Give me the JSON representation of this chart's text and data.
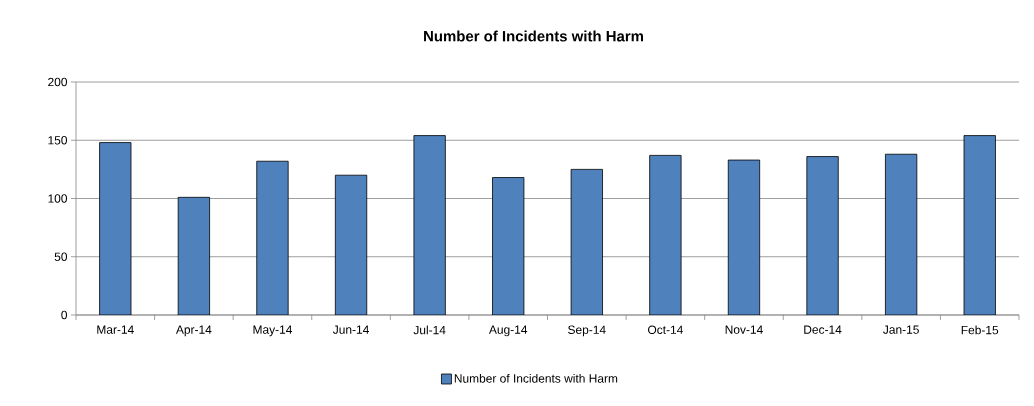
{
  "chart_data": {
    "type": "bar",
    "title": "Number of Incidents with Harm",
    "categories": [
      "Mar-14",
      "Apr-14",
      "May-14",
      "Jun-14",
      "Jul-14",
      "Aug-14",
      "Sep-14",
      "Oct-14",
      "Nov-14",
      "Dec-14",
      "Jan-15",
      "Feb-15"
    ],
    "series": [
      {
        "name": "Number of Incidents with Harm",
        "color": "#4f81bd",
        "values": [
          148,
          101,
          132,
          120,
          154,
          118,
          125,
          137,
          133,
          136,
          138,
          154
        ]
      }
    ],
    "ylim": [
      0,
      200
    ],
    "yticks": [
      0,
      50,
      100,
      150,
      200
    ],
    "grid": "y",
    "legend": "bottom"
  }
}
